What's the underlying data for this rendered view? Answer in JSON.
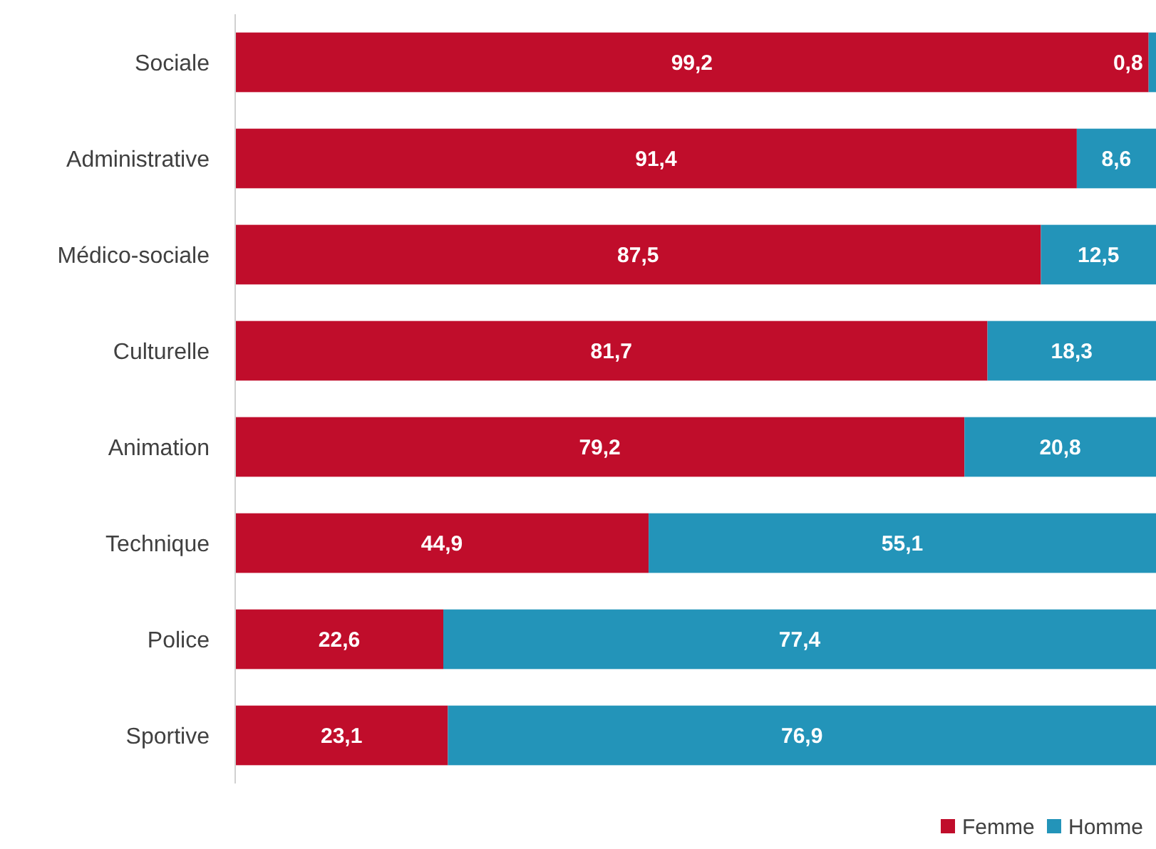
{
  "chart_data": {
    "type": "bar",
    "orientation": "horizontal",
    "stacked": true,
    "legend": "bottom right",
    "tick_labels": "y",
    "categories": [
      "Sociale",
      "Administrative",
      "Médico-sociale",
      "Culturelle",
      "Animation",
      "Technique",
      "Police",
      "Sportive"
    ],
    "series": [
      {
        "name": "Femme",
        "color": "#c00d2b",
        "values": [
          99.2,
          91.4,
          87.5,
          81.7,
          79.2,
          44.9,
          22.6,
          23.1
        ],
        "value_labels": [
          "99,2",
          "91,4",
          "87,5",
          "81,7",
          "79,2",
          "44,9",
          "22,6",
          "23,1"
        ]
      },
      {
        "name": "Homme",
        "color": "#2394b9",
        "values": [
          0.8,
          8.6,
          12.5,
          18.3,
          20.8,
          55.1,
          77.4,
          76.9
        ],
        "value_labels": [
          "0,8",
          "8,6",
          "12,5",
          "18,3",
          "20,8",
          "55,1",
          "77,4",
          "76,9"
        ]
      }
    ]
  }
}
